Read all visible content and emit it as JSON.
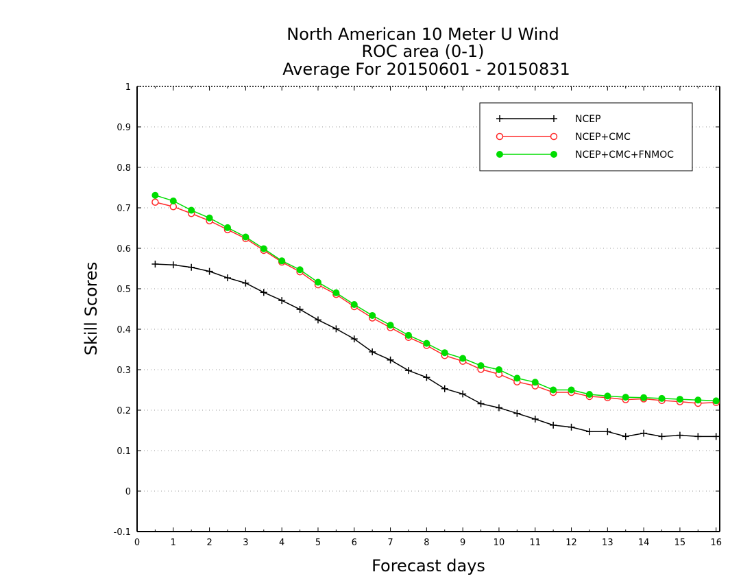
{
  "chart_data": {
    "type": "line",
    "title": [
      "North American 10 Meter U Wind",
      "ROC area (0-1)",
      "Average For 20150601 - 20150831"
    ],
    "xlabel": "Forecast days",
    "ylabel": "Skill Scores",
    "xlim": [
      0,
      16.1
    ],
    "ylim": [
      -0.1,
      1
    ],
    "xticks": [
      "0",
      "1",
      "2",
      "3",
      "4",
      "5",
      "6",
      "7",
      "8",
      "9",
      "10",
      "11",
      "12",
      "13",
      "14",
      "15",
      "16"
    ],
    "yticks": [
      "-0.1",
      "0",
      "0.1",
      "0.2",
      "0.3",
      "0.4",
      "0.5",
      "0.6",
      "0.7",
      "0.8",
      "0.9",
      "1"
    ],
    "grid": "horizontal-dotted",
    "legend_position": "top-right",
    "x": [
      0.5,
      1,
      1.5,
      2,
      2.5,
      3,
      3.5,
      4,
      4.5,
      5,
      5.5,
      6,
      6.5,
      7,
      7.5,
      8,
      8.5,
      9,
      9.5,
      10,
      10.5,
      11,
      11.5,
      12,
      12.5,
      13,
      13.5,
      14,
      14.5,
      15,
      15.5,
      16
    ],
    "series": [
      {
        "name": "NCEP",
        "color": "#000000",
        "marker": "plus",
        "values": [
          0.561,
          0.559,
          0.553,
          0.543,
          0.527,
          0.514,
          0.491,
          0.471,
          0.449,
          0.423,
          0.401,
          0.376,
          0.344,
          0.324,
          0.298,
          0.281,
          0.253,
          0.24,
          0.216,
          0.206,
          0.192,
          0.178,
          0.163,
          0.158,
          0.147,
          0.147,
          0.135,
          0.143,
          0.135,
          0.138,
          0.135,
          0.135
        ]
      },
      {
        "name": "NCEP+CMC",
        "color": "#ff2a2a",
        "marker": "open-circle",
        "values": [
          0.714,
          0.703,
          0.686,
          0.668,
          0.646,
          0.624,
          0.595,
          0.566,
          0.542,
          0.51,
          0.486,
          0.456,
          0.428,
          0.404,
          0.38,
          0.36,
          0.335,
          0.321,
          0.301,
          0.289,
          0.27,
          0.26,
          0.244,
          0.244,
          0.234,
          0.231,
          0.226,
          0.228,
          0.224,
          0.221,
          0.217,
          0.219
        ]
      },
      {
        "name": "NCEP+CMC+FNMOC",
        "color": "#00dd00",
        "marker": "filled-circle",
        "values": [
          0.731,
          0.717,
          0.694,
          0.675,
          0.651,
          0.628,
          0.599,
          0.569,
          0.547,
          0.516,
          0.49,
          0.461,
          0.434,
          0.41,
          0.385,
          0.365,
          0.342,
          0.328,
          0.31,
          0.3,
          0.279,
          0.269,
          0.25,
          0.25,
          0.239,
          0.235,
          0.232,
          0.231,
          0.229,
          0.227,
          0.225,
          0.223
        ]
      }
    ]
  }
}
